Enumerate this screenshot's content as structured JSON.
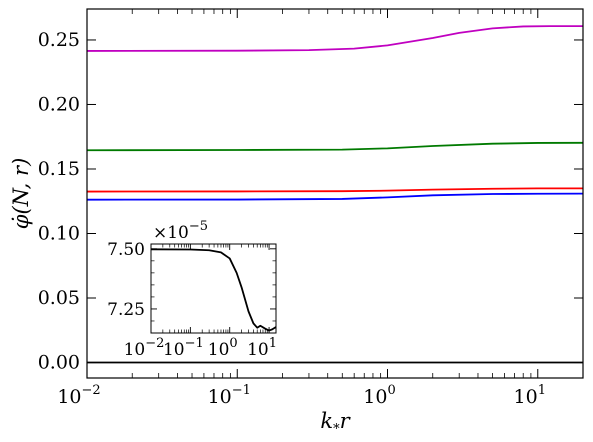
{
  "chart_data": [
    {
      "type": "line",
      "xlabel": "k_*r",
      "ylabel": "φ̇(N, r)",
      "xscale": "log",
      "xlim": [
        0.01,
        20
      ],
      "ylim": [
        -0.012,
        0.274
      ],
      "xticks": [
        {
          "value": 0.01,
          "base": "10",
          "exp": "−2"
        },
        {
          "value": 0.1,
          "base": "10",
          "exp": "−1"
        },
        {
          "value": 1,
          "base": "10",
          "exp": "0"
        },
        {
          "value": 10,
          "base": "10",
          "exp": "1"
        }
      ],
      "yticks": [
        {
          "value": 0.0,
          "label": "0.00"
        },
        {
          "value": 0.05,
          "label": "0.05"
        },
        {
          "value": 0.1,
          "label": "0.10"
        },
        {
          "value": 0.15,
          "label": "0.15"
        },
        {
          "value": 0.2,
          "label": "0.20"
        },
        {
          "value": 0.25,
          "label": "0.25"
        }
      ],
      "grid": false,
      "series": [
        {
          "color": "#c000c0",
          "x": [
            0.01,
            0.1,
            0.3,
            0.6,
            1.0,
            2.0,
            3.0,
            5.0,
            8.0,
            12.0,
            20.0
          ],
          "y": [
            0.2415,
            0.2417,
            0.2421,
            0.2433,
            0.2458,
            0.2515,
            0.2555,
            0.259,
            0.2605,
            0.2607,
            0.2607
          ]
        },
        {
          "color": "#007a00",
          "x": [
            0.01,
            0.1,
            0.5,
            1.0,
            2.0,
            5.0,
            10.0,
            20.0
          ],
          "y": [
            0.1645,
            0.1647,
            0.165,
            0.166,
            0.1678,
            0.1696,
            0.1702,
            0.1703
          ]
        },
        {
          "color": "#ff0000",
          "x": [
            0.01,
            0.1,
            0.5,
            1.0,
            2.0,
            5.0,
            10.0,
            20.0
          ],
          "y": [
            0.1325,
            0.1326,
            0.1328,
            0.1332,
            0.134,
            0.1347,
            0.135,
            0.135
          ]
        },
        {
          "color": "#0000ff",
          "x": [
            0.01,
            0.1,
            0.5,
            1.0,
            2.0,
            5.0,
            10.0,
            20.0
          ],
          "y": [
            0.1262,
            0.1263,
            0.1268,
            0.128,
            0.1296,
            0.1306,
            0.1308,
            0.1309
          ]
        },
        {
          "color": "#000000",
          "x": [
            0.01,
            20.0
          ],
          "y": [
            0.0,
            0.0
          ]
        }
      ]
    },
    {
      "type": "line",
      "inset": true,
      "xscale": "log",
      "xlim": [
        0.01,
        15
      ],
      "ylim": [
        7.15e-05,
        7.52e-05
      ],
      "yscale_label": {
        "base": "×10",
        "exp": "−5"
      },
      "xticks": [
        {
          "value": 0.01,
          "base": "10",
          "exp": "−2"
        },
        {
          "value": 0.1,
          "base": "10",
          "exp": "−1"
        },
        {
          "value": 1,
          "base": "10",
          "exp": "0"
        },
        {
          "value": 10,
          "base": "10",
          "exp": "1"
        }
      ],
      "yticks": [
        {
          "value": 7.25e-05,
          "label": "7.25"
        },
        {
          "value": 7.5e-05,
          "label": "7.50"
        }
      ],
      "series": [
        {
          "color": "#000000",
          "x": [
            0.01,
            0.1,
            0.3,
            0.6,
            1.0,
            1.5,
            2.0,
            3.0,
            4.0,
            5.0,
            6.0,
            8.0,
            10.0,
            12.0,
            15.0
          ],
          "y": [
            7.498e-05,
            7.497e-05,
            7.494e-05,
            7.485e-05,
            7.46e-05,
            7.4e-05,
            7.34e-05,
            7.24e-05,
            7.19e-05,
            7.172e-05,
            7.18e-05,
            7.168e-05,
            7.16e-05,
            7.165e-05,
            7.175e-05
          ]
        }
      ]
    }
  ]
}
